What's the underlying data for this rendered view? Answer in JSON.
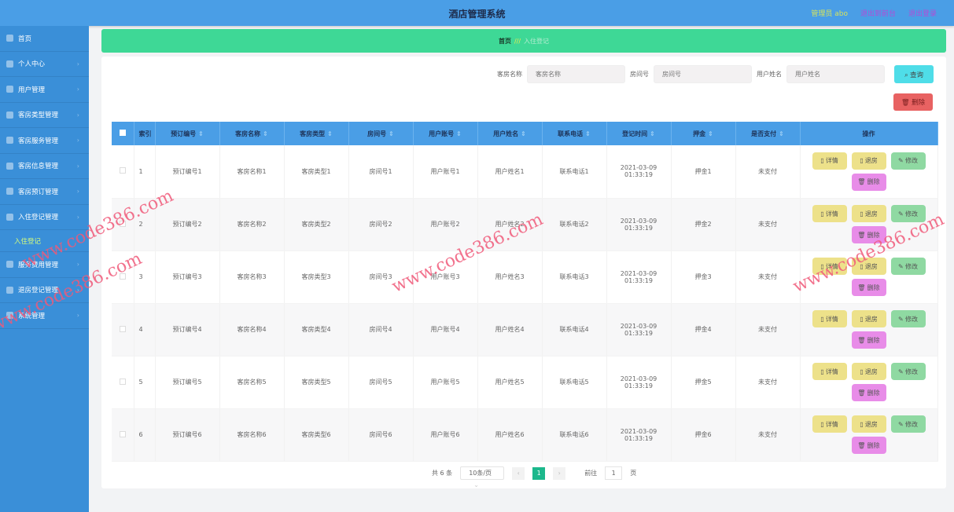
{
  "header": {
    "title": "酒店管理系统",
    "user": "管理员 abo",
    "front_link": "退出到前台",
    "logout": "退出登录"
  },
  "sidebar": {
    "items": [
      {
        "label": "首页",
        "icon": "home-icon",
        "arrow": false
      },
      {
        "label": "个人中心",
        "icon": "user-icon",
        "arrow": true
      },
      {
        "label": "用户管理",
        "icon": "users-icon",
        "arrow": true
      },
      {
        "label": "客房类型管理",
        "icon": "list-icon",
        "arrow": true
      },
      {
        "label": "客房服务管理",
        "icon": "service-icon",
        "arrow": true
      },
      {
        "label": "客房信息管理",
        "icon": "info-icon",
        "arrow": true
      },
      {
        "label": "客房预订管理",
        "icon": "list-icon",
        "arrow": true
      },
      {
        "label": "入住登记管理",
        "icon": "user-icon",
        "arrow": true,
        "sub": "入住登记"
      },
      {
        "label": "服务费用管理",
        "icon": "fee-icon",
        "arrow": true
      },
      {
        "label": "退房登记管理",
        "icon": "checkout-icon",
        "arrow": true
      },
      {
        "label": "系统管理",
        "icon": "gear-icon",
        "arrow": true
      }
    ]
  },
  "breadcrumb": {
    "home": "首页",
    "current": "入住登记"
  },
  "search": {
    "room_name_label": "客房名称",
    "room_name_placeholder": "客房名称",
    "room_no_label": "房间号",
    "room_no_placeholder": "房间号",
    "user_name_label": "用户姓名",
    "user_name_placeholder": "用户姓名",
    "query": "⌕ 查询",
    "delete": "🗑 删除"
  },
  "table": {
    "headers": [
      "索引",
      "预订编号",
      "客房名称",
      "客房类型",
      "房间号",
      "用户账号",
      "用户姓名",
      "联系电话",
      "登记时间",
      "押金",
      "是否支付",
      "操作"
    ],
    "actions": {
      "detail": "▯ 详情",
      "checkout": "▯ 退房",
      "edit": "✎ 修改",
      "delete": "🗑 删除"
    },
    "rows": [
      [
        "1",
        "预订编号1",
        "客房名称1",
        "客房类型1",
        "房间号1",
        "用户账号1",
        "用户姓名1",
        "联系电话1",
        "2021-03-09 01:33:19",
        "押金1",
        "未支付"
      ],
      [
        "2",
        "预订编号2",
        "客房名称2",
        "客房类型2",
        "房间号2",
        "用户账号2",
        "用户姓名2",
        "联系电话2",
        "2021-03-09 01:33:19",
        "押金2",
        "未支付"
      ],
      [
        "3",
        "预订编号3",
        "客房名称3",
        "客房类型3",
        "房间号3",
        "用户账号3",
        "用户姓名3",
        "联系电话3",
        "2021-03-09 01:33:19",
        "押金3",
        "未支付"
      ],
      [
        "4",
        "预订编号4",
        "客房名称4",
        "客房类型4",
        "房间号4",
        "用户账号4",
        "用户姓名4",
        "联系电话4",
        "2021-03-09 01:33:19",
        "押金4",
        "未支付"
      ],
      [
        "5",
        "预订编号5",
        "客房名称5",
        "客房类型5",
        "房间号5",
        "用户账号5",
        "用户姓名5",
        "联系电话5",
        "2021-03-09 01:33:19",
        "押金5",
        "未支付"
      ],
      [
        "6",
        "预订编号6",
        "客房名称6",
        "客房类型6",
        "房间号6",
        "用户账号6",
        "用户姓名6",
        "联系电话6",
        "2021-03-09 01:33:19",
        "押金6",
        "未支付"
      ]
    ]
  },
  "pagination": {
    "total": "共 6 条",
    "page_size": "10条/页",
    "prev": "‹",
    "current": "1",
    "next": "›",
    "goto_label": "前往",
    "goto_value": "1",
    "page_unit": "页"
  },
  "watermark": "www.code386.com",
  "colors": {
    "header": "#4a9ee6",
    "sidebar": "#3a8fd8",
    "breadcrumb": "#3ed896",
    "query": "#4fdde8",
    "delete": "#e86262",
    "active_page": "#1cb88c"
  }
}
